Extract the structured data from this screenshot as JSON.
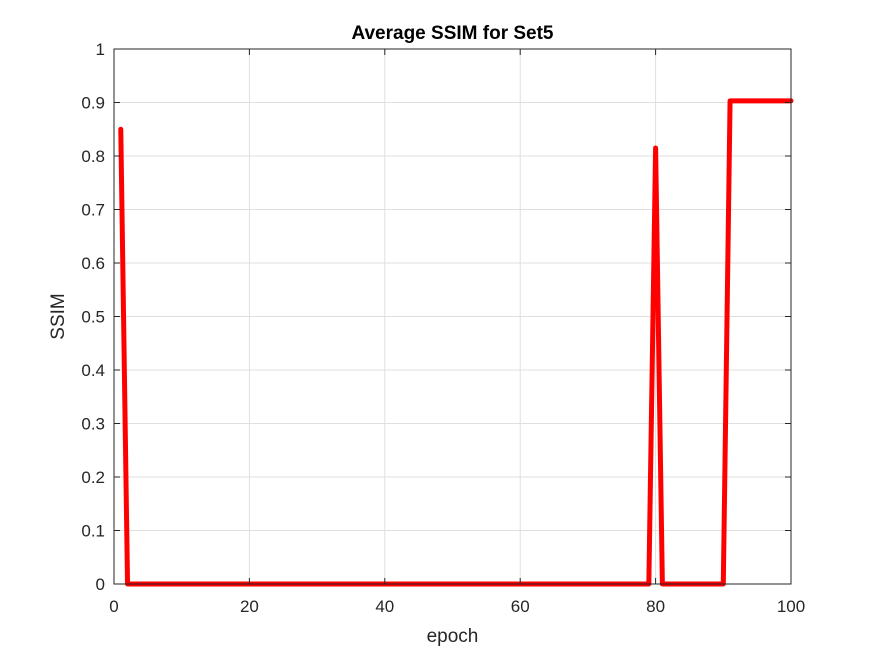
{
  "chart_data": {
    "type": "line",
    "title": "Average SSIM for Set5",
    "xlabel": "epoch",
    "ylabel": "SSIM",
    "xlim": [
      0,
      100
    ],
    "ylim": [
      0,
      1
    ],
    "xticks": [
      0,
      20,
      40,
      60,
      80,
      100
    ],
    "xtick_labels": [
      "0",
      "20",
      "40",
      "60",
      "80",
      "100"
    ],
    "yticks": [
      0,
      0.1,
      0.2,
      0.3,
      0.4,
      0.5,
      0.6,
      0.7,
      0.8,
      0.9,
      1
    ],
    "ytick_labels": [
      "0",
      "0.1",
      "0.2",
      "0.3",
      "0.4",
      "0.5",
      "0.6",
      "0.7",
      "0.8",
      "0.9",
      "1"
    ],
    "grid": true,
    "series": [
      {
        "color": "#ff0000",
        "x": [
          1,
          2,
          79,
          80,
          81,
          90,
          91,
          100
        ],
        "y": [
          0.85,
          0,
          0,
          0.815,
          0,
          0,
          0.903,
          0.903
        ]
      }
    ]
  }
}
